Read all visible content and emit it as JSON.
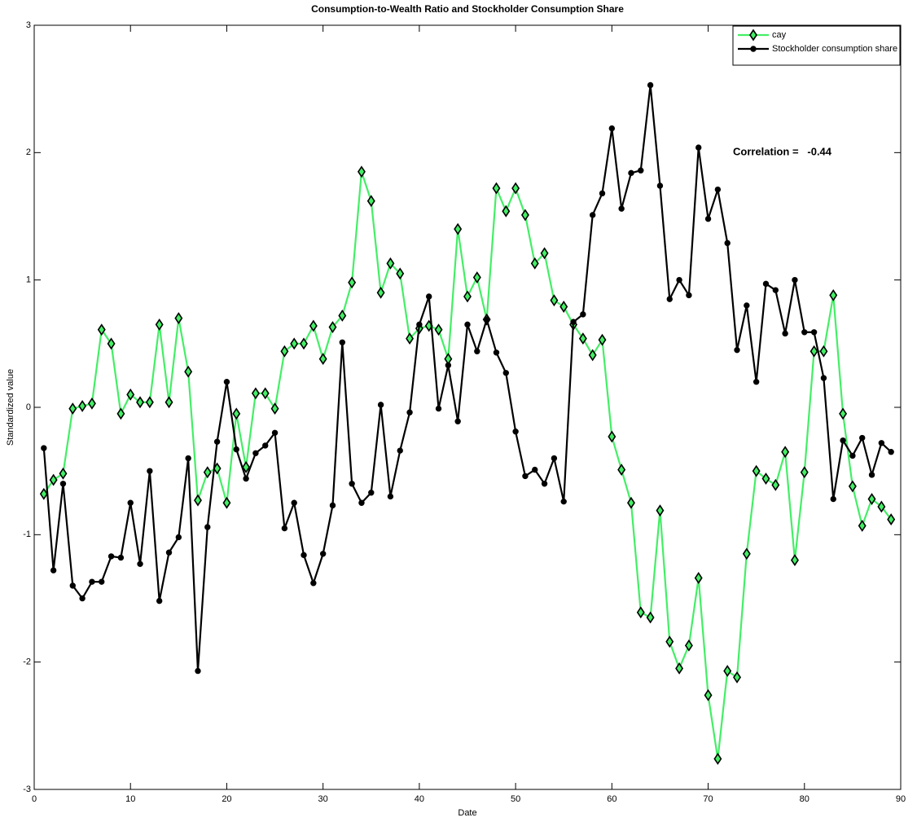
{
  "chart_data": {
    "type": "line",
    "title": "Consumption-to-Wealth Ratio and Stockholder Consumption Share",
    "x_label": "Date",
    "y_label": "Standardized value",
    "annotation": "Correlation =   -0.44",
    "legend": "upper right",
    "xlim": [
      0,
      90
    ],
    "xticks": [
      0,
      10,
      20,
      30,
      40,
      50,
      60,
      70,
      80,
      90
    ],
    "ylim": [
      -3,
      3
    ],
    "yticks": [
      -3,
      -2,
      -1,
      0,
      1,
      2,
      3
    ],
    "x": [
      1,
      2,
      3,
      4,
      5,
      6,
      7,
      8,
      9,
      10,
      11,
      12,
      13,
      14,
      15,
      16,
      17,
      18,
      19,
      20,
      21,
      22,
      23,
      24,
      25,
      26,
      27,
      28,
      29,
      30,
      31,
      32,
      33,
      34,
      35,
      36,
      37,
      38,
      39,
      40,
      41,
      42,
      43,
      44,
      45,
      46,
      47,
      48,
      49,
      50,
      51,
      52,
      53,
      54,
      55,
      56,
      57,
      58,
      59,
      60,
      61,
      62,
      63,
      64,
      65,
      66,
      67,
      68,
      69,
      70,
      71,
      72,
      73,
      74,
      75,
      76,
      77,
      78,
      79,
      80,
      81,
      82,
      83,
      84,
      85,
      86,
      87,
      88,
      89
    ],
    "series": [
      {
        "name": "cay",
        "color": "#44ee66",
        "marker": "diamond",
        "values": [
          -0.68,
          -0.57,
          -0.52,
          -0.01,
          0.01,
          0.03,
          0.61,
          0.5,
          -0.05,
          0.1,
          0.04,
          0.04,
          0.65,
          0.04,
          0.7,
          0.28,
          -0.73,
          -0.51,
          -0.48,
          -0.75,
          -0.05,
          -0.47,
          0.11,
          0.11,
          -0.01,
          0.44,
          0.5,
          0.5,
          0.64,
          0.38,
          0.63,
          0.72,
          0.98,
          1.85,
          1.62,
          0.9,
          1.13,
          1.05,
          0.54,
          0.62,
          0.64,
          0.61,
          0.38,
          1.4,
          0.87,
          1.02,
          0.69,
          1.72,
          1.54,
          1.72,
          1.51,
          1.13,
          1.21,
          0.84,
          0.79,
          0.65,
          0.54,
          0.41,
          0.53,
          -0.23,
          -0.49,
          -0.75,
          -1.61,
          -1.65,
          -0.81,
          -1.84,
          -2.05,
          -1.87,
          -1.34,
          -2.26,
          -2.76,
          -2.07,
          -2.12,
          -1.15,
          -0.5,
          -0.56,
          -0.61,
          -0.35,
          -1.2,
          -0.51,
          0.44,
          0.44,
          0.88,
          -0.05,
          -0.62,
          -0.93,
          -0.72,
          -0.78,
          -0.88
        ]
      },
      {
        "name": "Stockholder consumption share",
        "color": "#000000",
        "marker": "circle",
        "values": [
          -0.32,
          -1.28,
          -0.6,
          -1.4,
          -1.5,
          -1.37,
          -1.37,
          -1.17,
          -1.18,
          -0.75,
          -1.23,
          -0.5,
          -1.52,
          -1.14,
          -1.02,
          -0.4,
          -2.07,
          -0.94,
          -0.27,
          0.2,
          -0.33,
          -0.56,
          -0.36,
          -0.3,
          -0.2,
          -0.95,
          -0.75,
          -1.16,
          -1.38,
          -1.15,
          -0.77,
          0.51,
          -0.6,
          -0.75,
          -0.67,
          0.02,
          -0.7,
          -0.34,
          -0.04,
          0.65,
          0.87,
          -0.01,
          0.33,
          -0.11,
          0.65,
          0.44,
          0.69,
          0.43,
          0.27,
          -0.19,
          -0.54,
          -0.49,
          -0.6,
          -0.4,
          -0.74,
          0.67,
          0.73,
          1.51,
          1.68,
          2.19,
          1.56,
          1.84,
          1.86,
          2.53,
          1.74,
          0.85,
          1.0,
          0.88,
          2.04,
          1.48,
          1.71,
          1.29,
          0.45,
          0.8,
          0.2,
          0.97,
          0.92,
          0.58,
          1.0,
          0.59,
          0.59,
          0.23,
          -0.72,
          -0.26,
          -0.38,
          -0.24,
          -0.53,
          -0.28,
          -0.35
        ]
      }
    ]
  }
}
